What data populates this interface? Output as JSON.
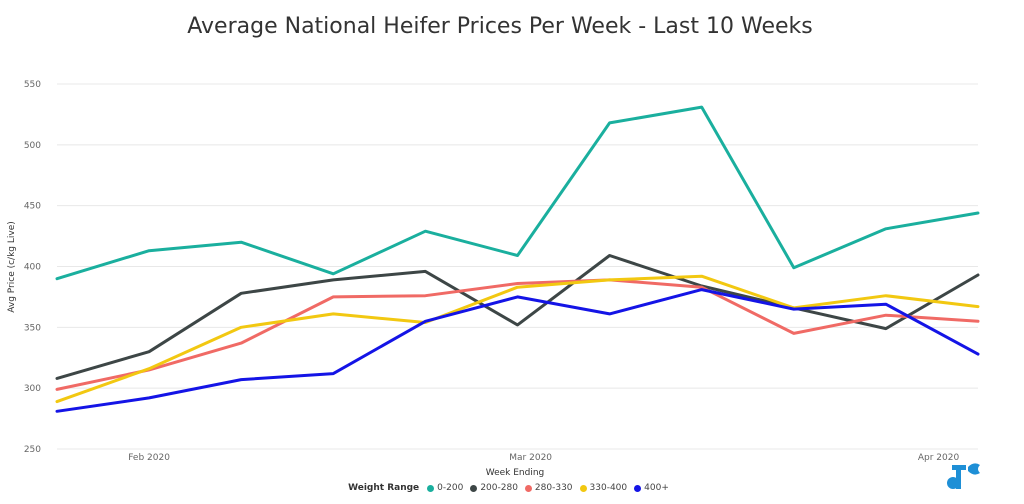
{
  "chart_data": {
    "type": "line",
    "title": "Average National Heifer Prices Per Week - Last 10 Weeks",
    "xlabel": "Week Ending",
    "ylabel": "Avg Price (c/kg Live)",
    "ylim": [
      250,
      550
    ],
    "yticks": [
      250,
      300,
      350,
      400,
      450,
      500,
      550
    ],
    "x": [
      "2020-01-25",
      "2020-02-01",
      "2020-02-08",
      "2020-02-15",
      "2020-02-22",
      "2020-02-29",
      "2020-03-07",
      "2020-03-14",
      "2020-03-21",
      "2020-03-28",
      "2020-04-04"
    ],
    "xticks": [
      {
        "date": "2020-02-01",
        "label": "Feb 2020"
      },
      {
        "date": "2020-03-01",
        "label": "Mar 2020"
      },
      {
        "date": "2020-04-01",
        "label": "Apr 2020"
      }
    ],
    "grid": true,
    "legend_title": "Weight Range",
    "legend_position": "bottom",
    "series": [
      {
        "name": "0-200",
        "color": "#1aaf9e",
        "values": [
          390,
          413,
          420,
          394,
          429,
          409,
          518,
          531,
          399,
          431,
          444
        ]
      },
      {
        "name": "200-280",
        "color": "#3d4646",
        "values": [
          308,
          330,
          378,
          389,
          396,
          352,
          409,
          384,
          366,
          349,
          393
        ]
      },
      {
        "name": "280-330",
        "color": "#f06a65",
        "values": [
          299,
          315,
          337,
          375,
          376,
          386,
          389,
          383,
          345,
          360,
          355
        ]
      },
      {
        "name": "330-400",
        "color": "#f2c811",
        "values": [
          289,
          316,
          350,
          361,
          354,
          383,
          389,
          392,
          366,
          376,
          367
        ]
      },
      {
        "name": "400+",
        "color": "#1414e6",
        "values": [
          281,
          292,
          307,
          312,
          355,
          375,
          361,
          381,
          365,
          369,
          328
        ]
      }
    ]
  }
}
